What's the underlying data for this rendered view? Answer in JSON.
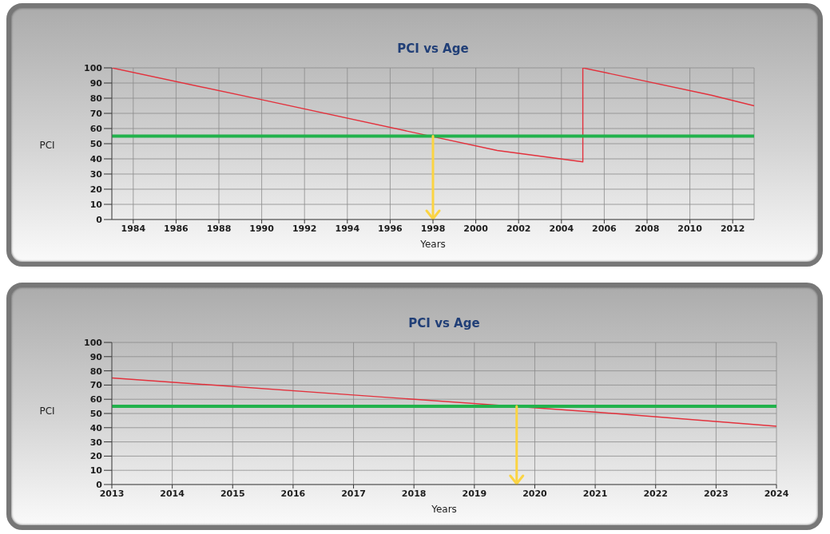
{
  "chart_data": [
    {
      "type": "line",
      "title": "PCI vs Age",
      "xlabel": "Years",
      "ylabel": "PCI",
      "x": [
        1983,
        1990,
        2001,
        2005,
        2005,
        2011,
        2013
      ],
      "series": [
        {
          "color": "#e3313c",
          "values": [
            100,
            79,
            45.5,
            38,
            100,
            82,
            75
          ]
        }
      ],
      "xlim": [
        1983,
        2013
      ],
      "xticks": [
        1984,
        1986,
        1988,
        1990,
        1992,
        1994,
        1996,
        1998,
        2000,
        2002,
        2004,
        2006,
        2008,
        2010,
        2012
      ],
      "ylim": [
        0,
        100
      ],
      "yticks": [
        0,
        10,
        20,
        30,
        40,
        50,
        60,
        70,
        80,
        90,
        100
      ],
      "grid": true,
      "ref_lines": [
        {
          "axis": "y",
          "value": 55,
          "color": "#22b24c"
        },
        {
          "axis": "x",
          "value": 1998,
          "color": "#fbd443"
        }
      ]
    },
    {
      "type": "line",
      "title": "PCI vs Age",
      "xlabel": "Years",
      "ylabel": "PCI",
      "x": [
        2013,
        2017,
        2021,
        2024
      ],
      "series": [
        {
          "color": "#e3313c",
          "values": [
            75,
            63,
            51,
            41
          ]
        }
      ],
      "xlim": [
        2013,
        2024
      ],
      "xticks": [
        2013,
        2014,
        2015,
        2016,
        2017,
        2018,
        2019,
        2020,
        2021,
        2022,
        2023,
        2024
      ],
      "ylim": [
        0,
        100
      ],
      "yticks": [
        0,
        10,
        20,
        30,
        40,
        50,
        60,
        70,
        80,
        90,
        100
      ],
      "grid": true,
      "ref_lines": [
        {
          "axis": "y",
          "value": 55,
          "color": "#22b24c"
        },
        {
          "axis": "x",
          "value": 2019.7,
          "color": "#fbd443"
        }
      ]
    }
  ]
}
